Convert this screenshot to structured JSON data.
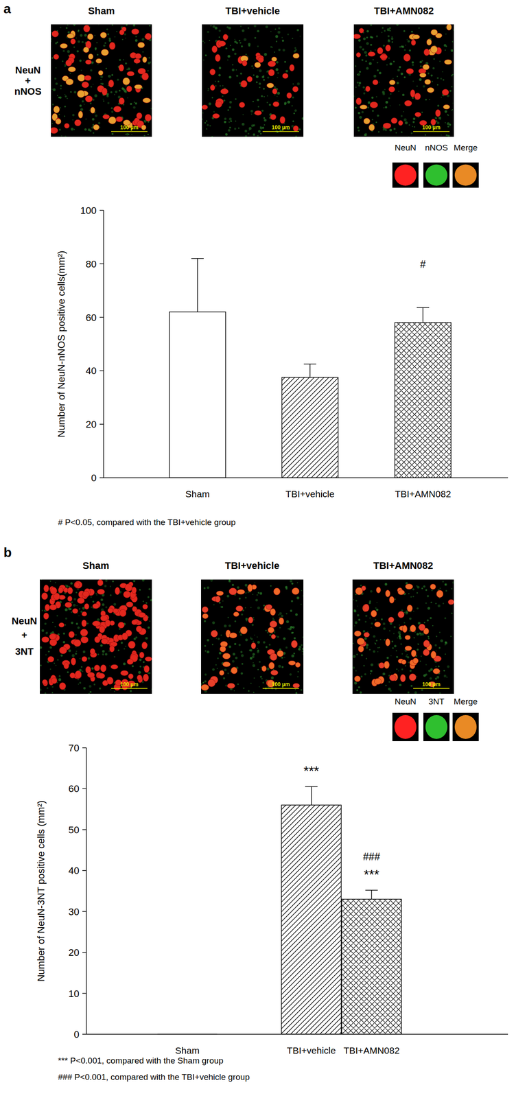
{
  "panels": [
    {
      "label": "a",
      "stain": [
        "NeuN",
        "+",
        "nNOS"
      ],
      "image_titles": [
        "Sham",
        "TBI+vehicle",
        "TBI+AMN082"
      ],
      "scale_bar": "100 µm",
      "inset_labels": [
        "NeuN",
        "nNOS",
        "Merge"
      ]
    },
    {
      "label": "b",
      "stain": [
        "NeuN",
        "+",
        "3NT"
      ],
      "image_titles": [
        "Sham",
        "TBI+vehicle",
        "TBI+AMN082"
      ],
      "scale_bar": "100 µm",
      "inset_labels": [
        "NeuN",
        "3NT",
        "Merge"
      ]
    }
  ],
  "chart_data": [
    {
      "type": "bar",
      "categories": [
        "Sham",
        "TBI+vehicle",
        "TBI+AMN082"
      ],
      "values": [
        62,
        37.5,
        58
      ],
      "errors": [
        20,
        5,
        5.6
      ],
      "ylim": [
        0,
        100
      ],
      "yticks": [
        0,
        20,
        40,
        60,
        80,
        100
      ],
      "y_label": "Number of NeuN-nNOS positive cells(mm²)",
      "annotations": [
        {
          "x": "TBI+AMN082",
          "text": "#"
        }
      ],
      "notes": [
        "# P<0.05, compared with the TBI+vehicle  group"
      ]
    },
    {
      "type": "bar",
      "categories": [
        "Sham",
        "TBI+vehicle",
        "TBI+AMN082"
      ],
      "values": [
        0,
        56,
        33
      ],
      "errors": [
        0,
        4.5,
        2.2
      ],
      "ylim": [
        0,
        70
      ],
      "yticks": [
        0,
        10,
        20,
        30,
        40,
        50,
        60,
        70
      ],
      "y_label": "Number of NeuN-3NT positive cells  (mm²)",
      "annotations": [
        {
          "x": "TBI+vehicle",
          "text": "***"
        },
        {
          "x": "TBI+AMN082",
          "text": "###"
        },
        {
          "x": "TBI+AMN082",
          "text": "***"
        }
      ],
      "notes": [
        "*** P<0.001, compared with the Sham group",
        "### P<0.001, compared with the TBI+vehicle  group"
      ]
    }
  ]
}
